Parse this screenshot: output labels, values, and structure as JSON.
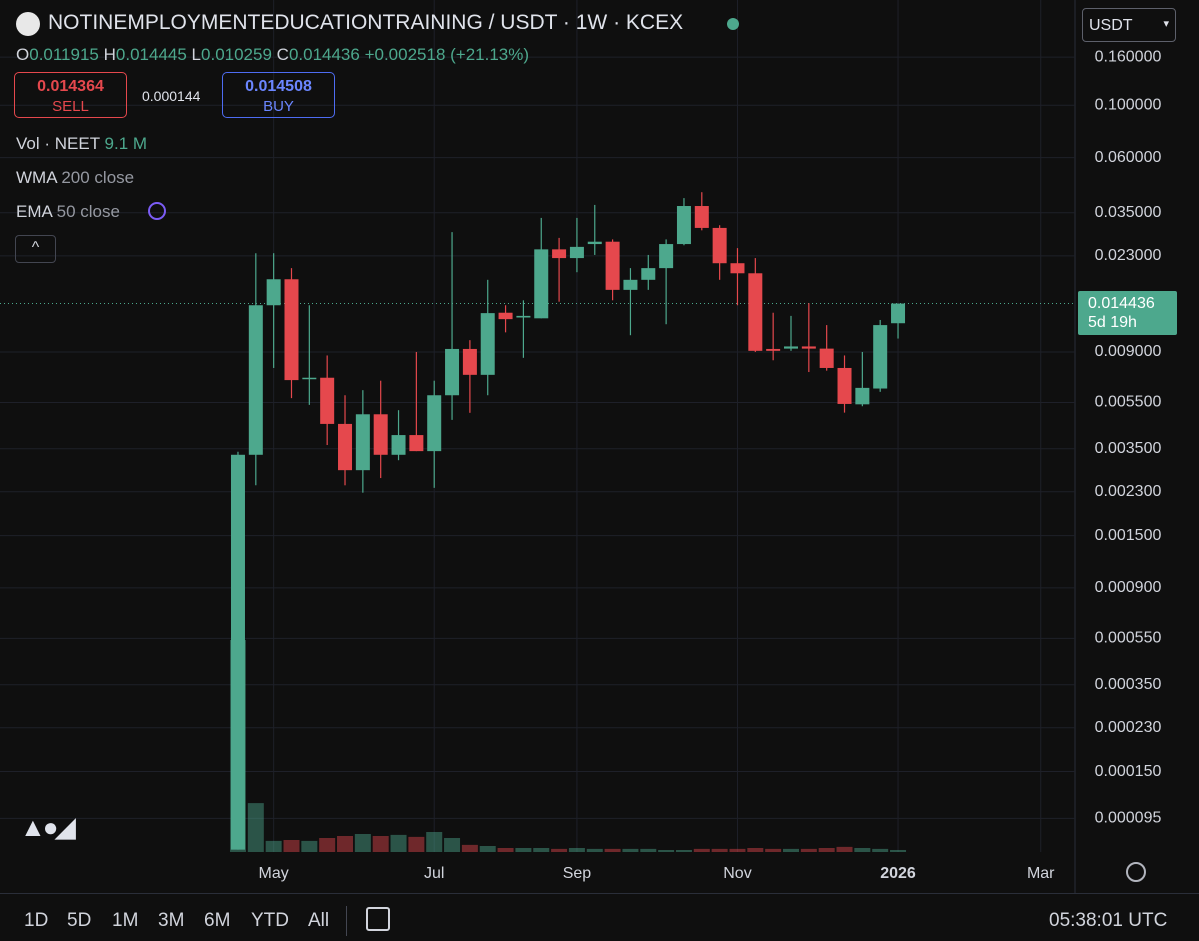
{
  "header": {
    "ohlc_labels": [
      "O",
      "H",
      "L",
      "C"
    ],
    "change": "+0.002518 (+21.13%)",
    "sell": {
      "price": "0.014364",
      "label": "SELL"
    },
    "spread": "0.000144",
    "buy": {
      "price": "0.014508",
      "label": "BUY"
    },
    "indicators": [
      {
        "name": "Vol · NEET",
        "value": "9.1 M"
      },
      {
        "name": "WMA",
        "value": "200 close"
      },
      {
        "name": "EMA",
        "value": "50 close"
      }
    ],
    "currency": "USDT",
    "countdown": "5d 19h"
  },
  "toolbar": {
    "ranges": [
      "1D",
      "5D",
      "1M",
      "3M",
      "6M",
      "YTD",
      "All"
    ],
    "clock": "05:38:01 UTC"
  },
  "chart_data": {
    "type": "candlestick",
    "title": "NOTINEMPLOYMENTEDUCATIONTRAINING / USDT · 1W · KCEX",
    "x": [
      0,
      1,
      2,
      3,
      4,
      5,
      6,
      7,
      8,
      9,
      10,
      11,
      12,
      13,
      14,
      15,
      16,
      17,
      18,
      19,
      20,
      21,
      22,
      23,
      24,
      25,
      26,
      27,
      28,
      29,
      30,
      31,
      32,
      33,
      34,
      35,
      36,
      37
    ],
    "open": [
      7e-05,
      0.0033,
      0.0142,
      0.0183,
      0.0069,
      0.007,
      0.00446,
      0.00284,
      0.0049,
      0.0033,
      0.004,
      0.00342,
      0.0059,
      0.00927,
      0.0072,
      0.0132,
      0.0126,
      0.0125,
      0.0245,
      0.0225,
      0.0258,
      0.0264,
      0.0165,
      0.0182,
      0.0204,
      0.0258,
      0.0374,
      0.0302,
      0.0214,
      0.0194,
      0.00927,
      0.0093,
      0.0095,
      0.0093,
      0.0077,
      0.0054,
      0.0063,
      0.011915
    ],
    "high": [
      0.0034,
      0.0236,
      0.0236,
      0.0204,
      0.0142,
      0.0087,
      0.0059,
      0.0062,
      0.0068,
      0.0051,
      0.009,
      0.0068,
      0.029,
      0.0101,
      0.0182,
      0.0142,
      0.0149,
      0.0333,
      0.0274,
      0.0333,
      0.0378,
      0.027,
      0.0204,
      0.0232,
      0.027,
      0.0404,
      0.0428,
      0.031,
      0.0248,
      0.0225,
      0.0132,
      0.0128,
      0.0145,
      0.0117,
      0.0087,
      0.009,
      0.0123,
      0.014445
    ],
    "low": [
      7e-05,
      0.00245,
      0.0077,
      0.00574,
      0.00537,
      0.00363,
      0.00245,
      0.00228,
      0.00263,
      0.00313,
      0.00342,
      0.00239,
      0.00464,
      0.00497,
      0.0059,
      0.0109,
      0.0085,
      0.0125,
      0.0147,
      0.0196,
      0.0232,
      0.0149,
      0.0106,
      0.0165,
      0.0118,
      0.0255,
      0.0295,
      0.0182,
      0.0142,
      0.009,
      0.0083,
      0.0091,
      0.0074,
      0.0075,
      0.00498,
      0.0053,
      0.0061,
      0.010259
    ],
    "close": [
      0.0033,
      0.0142,
      0.0183,
      0.00684,
      0.007,
      0.00446,
      0.00284,
      0.0049,
      0.0033,
      0.004,
      0.00342,
      0.0059,
      0.00927,
      0.0072,
      0.01315,
      0.0124,
      0.0128,
      0.0245,
      0.0225,
      0.0251,
      0.0264,
      0.0165,
      0.0182,
      0.0204,
      0.0258,
      0.0374,
      0.0302,
      0.0214,
      0.0194,
      0.0091,
      0.0091,
      0.0095,
      0.0093,
      0.0077,
      0.00542,
      0.00634,
      0.0117,
      0.014436
    ],
    "volume": [
      954,
      220,
      50,
      54,
      50,
      63,
      72,
      81,
      72,
      77,
      68,
      90,
      63,
      32,
      27,
      18,
      18,
      18,
      14,
      18,
      14,
      14,
      14,
      14,
      9,
      9,
      14,
      14,
      14,
      18,
      14,
      14,
      14,
      18,
      23,
      18,
      14,
      9.1
    ],
    "up_color": "#4da88d",
    "down_color": "#e5484d",
    "log_scale": true,
    "grid": true,
    "xlim": [
      -13.34,
      46.92
    ],
    "xticks": [
      {
        "value": 2,
        "label": "May"
      },
      {
        "value": 11,
        "label": "Jul"
      },
      {
        "value": 19,
        "label": "Sep"
      },
      {
        "value": 28,
        "label": "Nov"
      },
      {
        "value": 37,
        "label": "2026"
      },
      {
        "value": 45,
        "label": "Mar"
      }
    ],
    "ylim": [
      6.84e-05,
      0.189
    ],
    "yticks": [
      {
        "value": 0.16,
        "label": "0.160000"
      },
      {
        "value": 0.1,
        "label": "0.100000"
      },
      {
        "value": 0.06,
        "label": "0.060000"
      },
      {
        "value": 0.035,
        "label": "0.035000"
      },
      {
        "value": 0.023,
        "label": "0.023000"
      },
      {
        "value": 0.009,
        "label": "0.009000"
      },
      {
        "value": 0.0055,
        "label": "0.005500"
      },
      {
        "value": 0.0035,
        "label": "0.003500"
      },
      {
        "value": 0.0023,
        "label": "0.002300"
      },
      {
        "value": 0.0015,
        "label": "0.001500"
      },
      {
        "value": 0.0009,
        "label": "0.000900"
      },
      {
        "value": 0.00055,
        "label": "0.000550"
      },
      {
        "value": 0.00035,
        "label": "0.000350"
      },
      {
        "value": 0.00023,
        "label": "0.000230"
      },
      {
        "value": 0.00015,
        "label": "0.000150"
      },
      {
        "value": 9.5e-05,
        "label": "0.000095"
      }
    ]
  }
}
